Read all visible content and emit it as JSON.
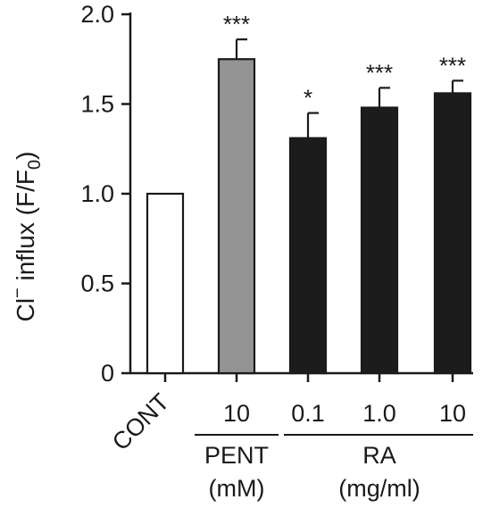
{
  "chart_data": {
    "type": "bar",
    "ylabel": {
      "base": "Cl",
      "superscript": "−",
      "rest": " influx (F/F",
      "subscript": "0",
      "close": ")"
    },
    "ylim": [
      0,
      2.0
    ],
    "yticks": [
      {
        "value": 0,
        "label": "0"
      },
      {
        "value": 0.5,
        "label": "0.5"
      },
      {
        "value": 1.0,
        "label": "1.0"
      },
      {
        "value": 1.5,
        "label": "1.5"
      },
      {
        "value": 2.0,
        "label": "2.0"
      }
    ],
    "bars": [
      {
        "id": "cont",
        "category": "CONT",
        "value": 1.0,
        "error": 0,
        "significance": "",
        "fill": "#ffffff"
      },
      {
        "id": "pent10",
        "category": "10",
        "value": 1.75,
        "error": 0.11,
        "significance": "***",
        "fill": "#939393"
      },
      {
        "id": "ra01",
        "category": "0.1",
        "value": 1.31,
        "error": 0.14,
        "significance": "*",
        "fill": "#1c1c1c"
      },
      {
        "id": "ra10",
        "category": "1.0",
        "value": 1.48,
        "error": 0.11,
        "significance": "***",
        "fill": "#1c1c1c"
      },
      {
        "id": "ra100",
        "category": "10",
        "value": 1.56,
        "error": 0.07,
        "significance": "***",
        "fill": "#1c1c1c"
      }
    ],
    "groups": [
      {
        "id": "pent",
        "name": "PENT",
        "unit": "(mM)"
      },
      {
        "id": "ra",
        "name": "RA",
        "unit": "(mg/ml)"
      }
    ],
    "grid": false,
    "legend": "none"
  }
}
